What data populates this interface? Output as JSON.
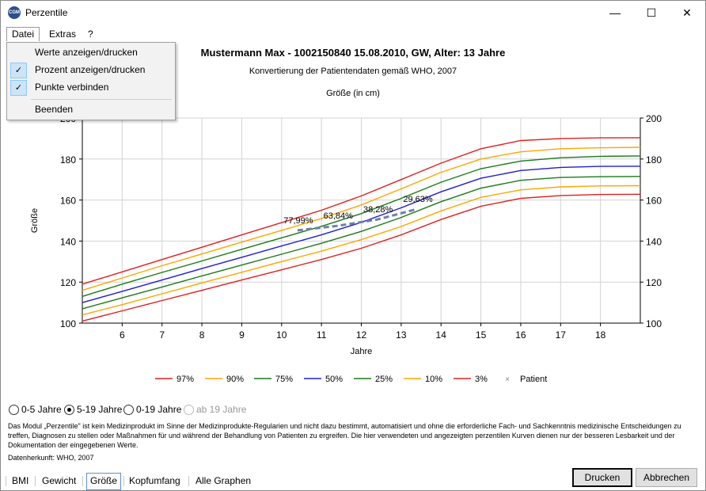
{
  "window": {
    "title": "Perzentile",
    "app_icon_text": "CGM",
    "minimize_glyph": "—",
    "maximize_glyph": "☐",
    "close_glyph": "✕"
  },
  "menu": {
    "items": [
      "Datei",
      "Extras",
      "?"
    ],
    "open_menu": "Datei",
    "dropdown": [
      {
        "label": "Werte anzeigen/drucken",
        "checked": false
      },
      {
        "label": "Prozent anzeigen/drucken",
        "checked": true
      },
      {
        "label": "Punkte verbinden",
        "checked": true
      },
      {
        "label": "Beenden",
        "checked": false
      }
    ],
    "check_glyph": "✓"
  },
  "chart_header": {
    "title": "Mustermann Max - 1002150840 15.08.2010, GW, Alter: 13 Jahre",
    "subtitle": "Konvertierung der Patientendaten gemäß WHO, 2007",
    "top_label": "Größe (in cm)"
  },
  "chart_data": {
    "type": "line",
    "xlabel": "Jahre",
    "ylabel": "Größe",
    "xlim": [
      5,
      19
    ],
    "ylim": [
      100,
      200
    ],
    "x_ticks": [
      6,
      7,
      8,
      9,
      10,
      11,
      12,
      13,
      14,
      15,
      16,
      17,
      18
    ],
    "y_ticks": [
      100,
      120,
      140,
      160,
      180,
      200
    ],
    "grid": true,
    "legend_position": "bottom",
    "series": [
      {
        "name": "97%",
        "color": "#e02020",
        "x": [
          5,
          6,
          7,
          8,
          9,
          10,
          11,
          12,
          13,
          14,
          15,
          16,
          17,
          18,
          19
        ],
        "y": [
          119,
          125,
          131,
          137,
          143,
          149,
          155,
          162,
          170,
          178,
          185,
          189,
          190,
          190.3,
          190.4
        ]
      },
      {
        "name": "90%",
        "color": "#ffa500",
        "x": [
          5,
          6,
          7,
          8,
          9,
          10,
          11,
          12,
          13,
          14,
          15,
          16,
          17,
          18,
          19
        ],
        "y": [
          116,
          122,
          128,
          133.7,
          139.5,
          145.2,
          151,
          157.6,
          165.5,
          173.5,
          180,
          183.5,
          185,
          185.5,
          185.7
        ]
      },
      {
        "name": "75%",
        "color": "#1a7a1a",
        "x": [
          5,
          6,
          7,
          8,
          9,
          10,
          11,
          12,
          13,
          14,
          15,
          16,
          17,
          18,
          19
        ],
        "y": [
          113,
          119,
          124.7,
          130.3,
          136,
          141.6,
          147.2,
          153.4,
          160.8,
          168.7,
          175.3,
          179,
          180.6,
          181.3,
          181.5
        ]
      },
      {
        "name": "50%",
        "color": "#1f1fd0",
        "x": [
          5,
          6,
          7,
          8,
          9,
          10,
          11,
          12,
          13,
          14,
          15,
          16,
          17,
          18,
          19
        ],
        "y": [
          110,
          115.5,
          121,
          126.6,
          132.1,
          137.6,
          143,
          149.1,
          156.2,
          164,
          170.6,
          174.4,
          175.9,
          176.4,
          176.5
        ]
      },
      {
        "name": "25%",
        "color": "#1a7a1a",
        "x": [
          5,
          6,
          7,
          8,
          9,
          10,
          11,
          12,
          13,
          14,
          15,
          16,
          17,
          18,
          19
        ],
        "y": [
          107,
          112.3,
          117.6,
          123,
          128.3,
          133.6,
          138.9,
          144.7,
          151.5,
          159.2,
          165.8,
          169.6,
          171,
          171.4,
          171.5
        ]
      },
      {
        "name": "10%",
        "color": "#ffa500",
        "x": [
          5,
          6,
          7,
          8,
          9,
          10,
          11,
          12,
          13,
          14,
          15,
          16,
          17,
          18,
          19
        ],
        "y": [
          104,
          109,
          114.3,
          119.6,
          124.8,
          130,
          135.1,
          140.7,
          147.1,
          154.7,
          161.3,
          165,
          166.4,
          166.9,
          167
        ]
      },
      {
        "name": "3%",
        "color": "#e02020",
        "x": [
          5,
          6,
          7,
          8,
          9,
          10,
          11,
          12,
          13,
          14,
          15,
          16,
          17,
          18,
          19
        ],
        "y": [
          101,
          106,
          111,
          116,
          121,
          126,
          131,
          136.5,
          143,
          150.5,
          157,
          160.8,
          162.2,
          162.7,
          162.8
        ]
      }
    ],
    "patient": {
      "name": "Patient",
      "color": "#6f7fa8",
      "marker_glyph": "×",
      "points": [
        {
          "x": 10.4,
          "y": 145.2,
          "label": "77,99%"
        },
        {
          "x": 11.4,
          "y": 147.4,
          "label": "63,84%"
        },
        {
          "x": 12.4,
          "y": 150.5,
          "label": "38,28%"
        },
        {
          "x": 13.4,
          "y": 155.6,
          "label": "29,63%"
        }
      ]
    }
  },
  "age_ranges": [
    {
      "label": "0-5 Jahre",
      "checked": false,
      "disabled": false
    },
    {
      "label": "5-19 Jahre",
      "checked": true,
      "disabled": false
    },
    {
      "label": "0-19 Jahre",
      "checked": false,
      "disabled": false
    },
    {
      "label": "ab 19 Jahre",
      "checked": false,
      "disabled": true
    }
  ],
  "disclaimer": "Das Modul „Perzentile\" ist kein Medizinprodukt im Sinne der Medizinprodukte-Regularien und nicht dazu bestimmt, automatisiert und ohne die erforderliche Fach- und Sachkenntnis medizinische Entscheidungen zu treffen, Diagnosen zu stellen oder Maßnahmen für und während der Behandlung von Patienten zu ergreifen. Die hier verwendeten und angezeigten perzentilen Kurven dienen nur der besseren Lesbarkeit und der Dokumentation der eingegebenen Werte.",
  "source": "Datenherkunft: WHO, 2007",
  "tabs": [
    {
      "label": "BMI",
      "selected": false
    },
    {
      "label": "Gewicht",
      "selected": false
    },
    {
      "label": "Größe",
      "selected": true
    },
    {
      "label": "Kopfumfang",
      "selected": false
    },
    {
      "label": "Alle Graphen",
      "selected": false
    }
  ],
  "buttons": {
    "print": "Drucken",
    "cancel": "Abbrechen"
  }
}
